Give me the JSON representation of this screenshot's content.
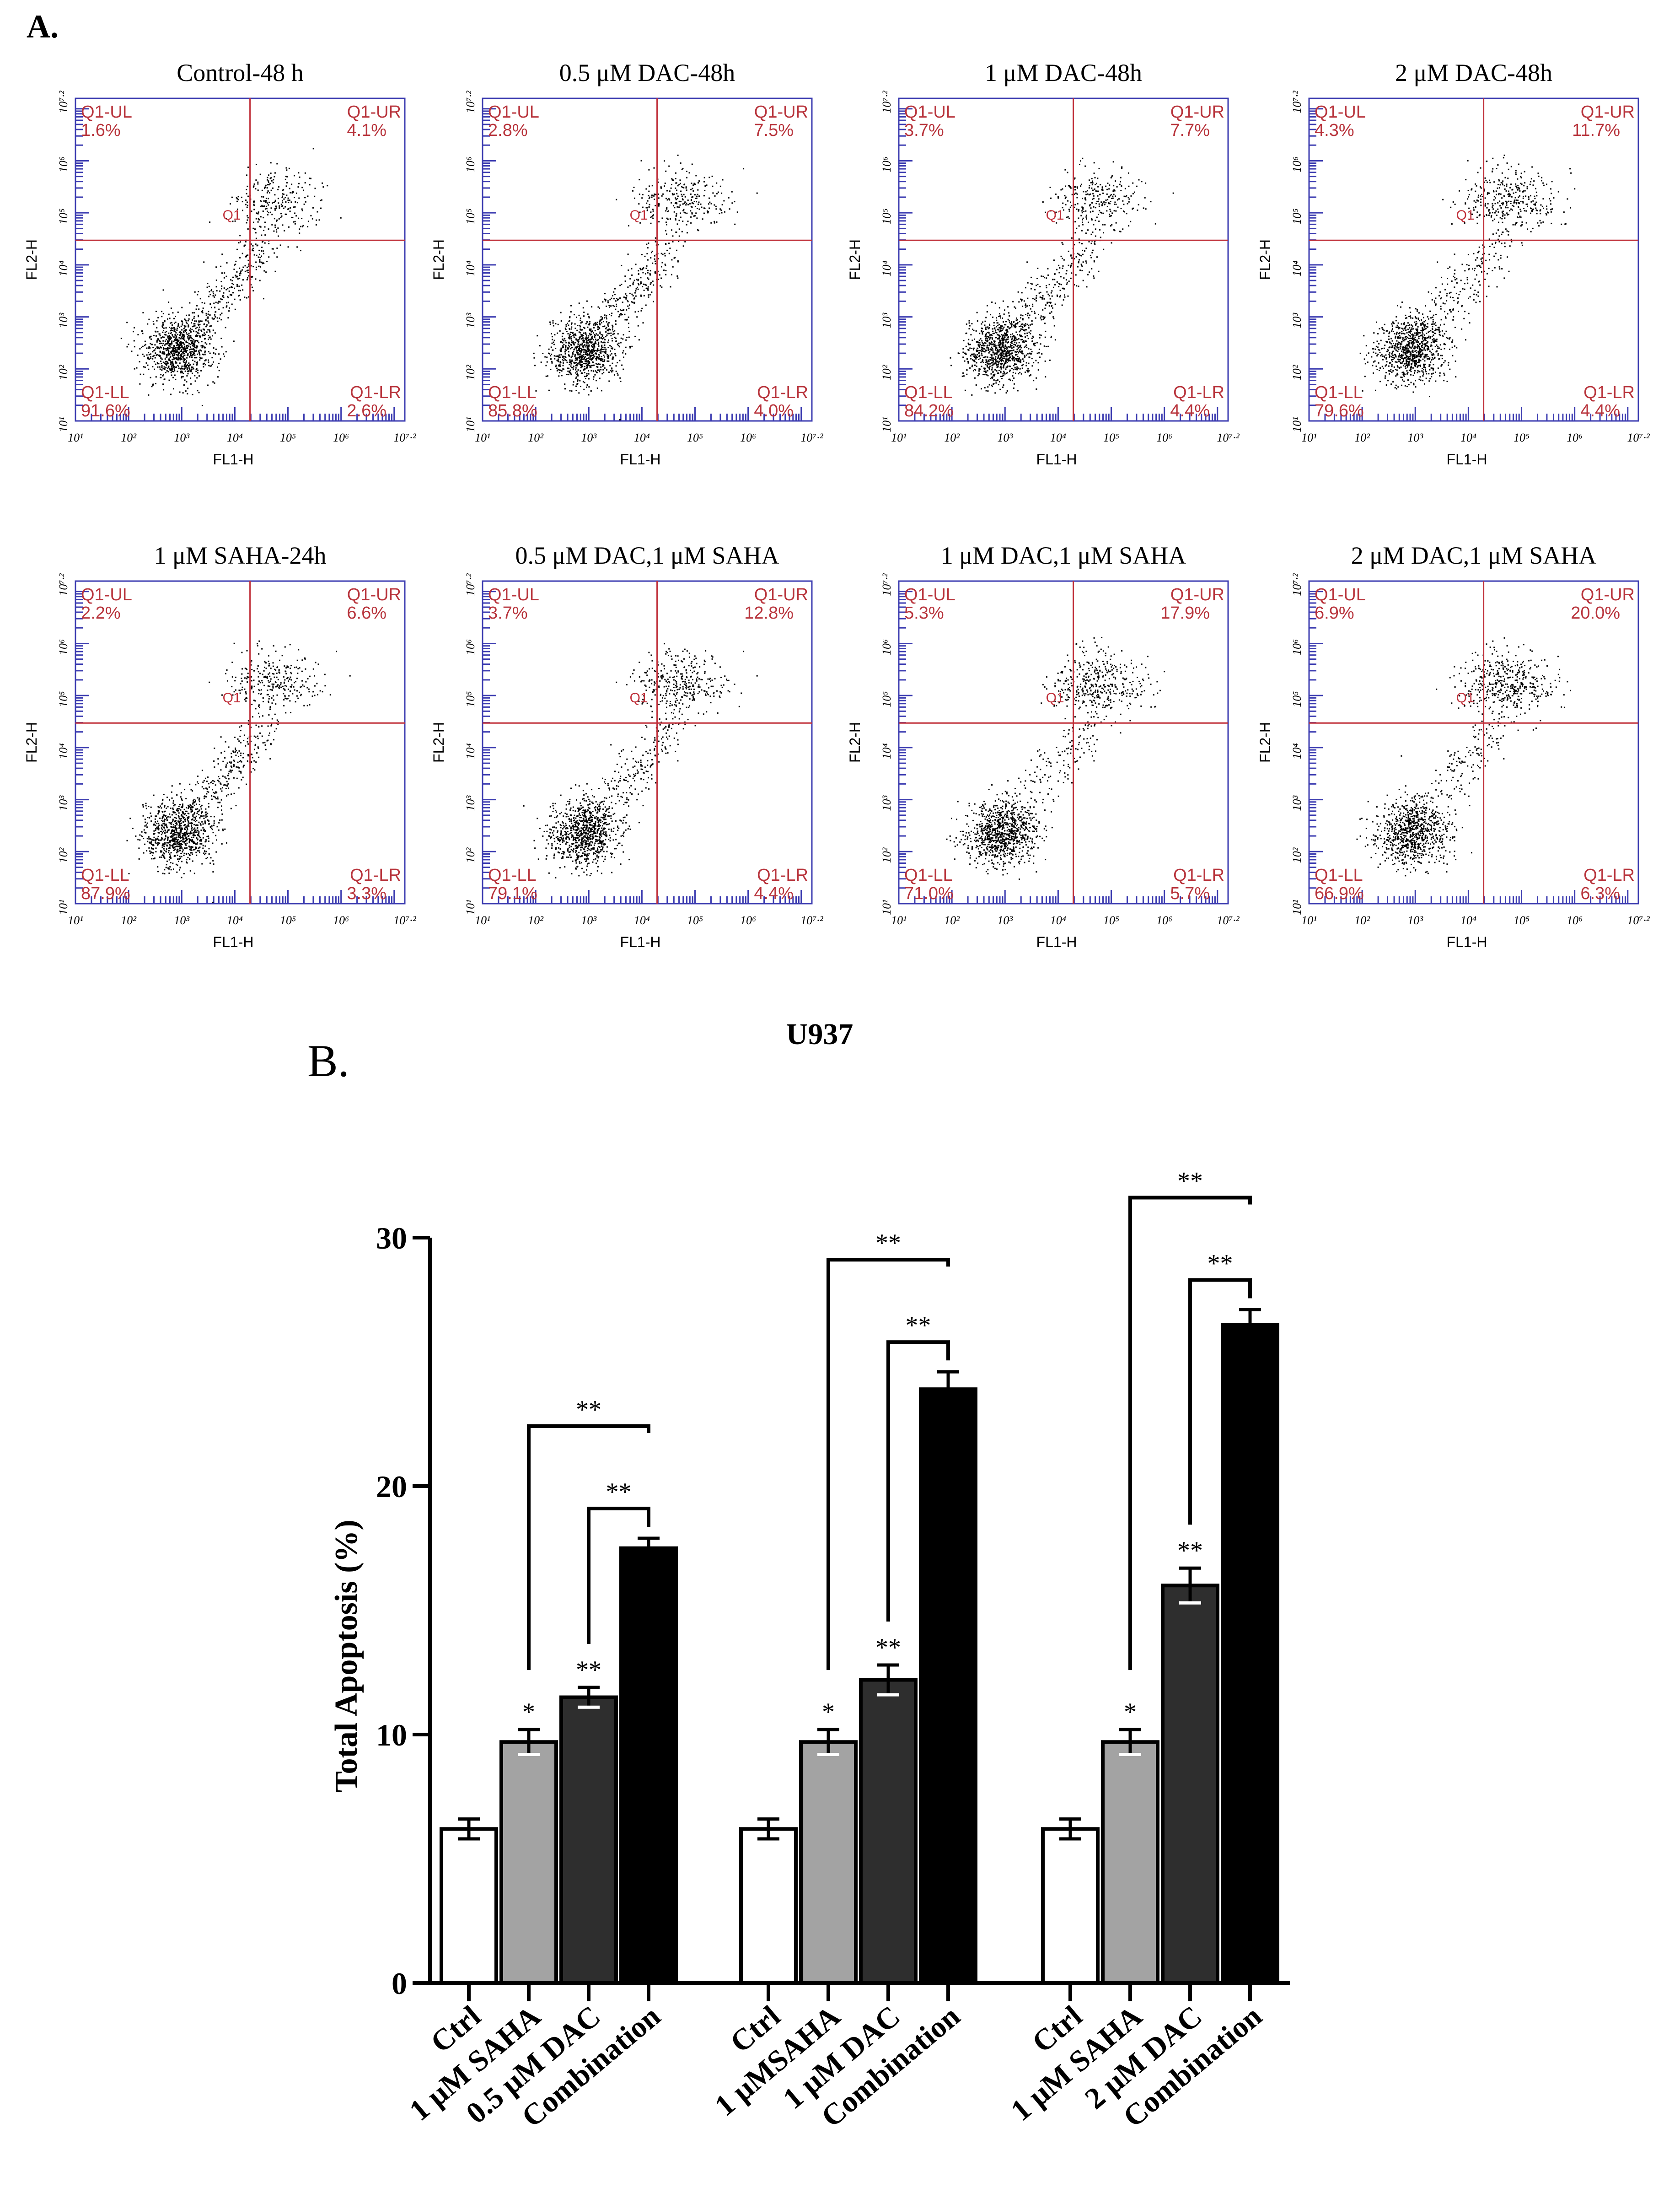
{
  "panel_a": {
    "label": "A.",
    "gate_label": "Q1",
    "x_axis_label": "FL1-H",
    "y_axis_label": "FL2-H",
    "log_ticks": [
      "10¹",
      "10²",
      "10³",
      "10⁴",
      "10⁵",
      "10⁶",
      "10⁷·²"
    ],
    "colors": {
      "frame": "#3b3bb0",
      "gate": "#c0303a",
      "quad_text": "#b8343c",
      "dots": "#000000"
    },
    "plots": [
      {
        "title": "Control-48 h",
        "ul": "1.6%",
        "ur": "4.1%",
        "ll": "91.6%",
        "lr": "2.6%"
      },
      {
        "title": "0.5 μM DAC-48h",
        "ul": "2.8%",
        "ur": "7.5%",
        "ll": "85.8%",
        "lr": "4.0%"
      },
      {
        "title": "1 μM DAC-48h",
        "ul": "3.7%",
        "ur": "7.7%",
        "ll": "84.2%",
        "lr": "4.4%"
      },
      {
        "title": "2 μM DAC-48h",
        "ul": "4.3%",
        "ur": "11.7%",
        "ll": "79.6%",
        "lr": "4.4%"
      },
      {
        "title": "1 μM SAHA-24h",
        "ul": "2.2%",
        "ur": "6.6%",
        "ll": "87.9%",
        "lr": "3.3%"
      },
      {
        "title": "0.5 μM DAC,1 μM SAHA",
        "ul": "3.7%",
        "ur": "12.8%",
        "ll": "79.1%",
        "lr": "4.4%"
      },
      {
        "title": "1 μM DAC,1 μM SAHA",
        "ul": "5.3%",
        "ur": "17.9%",
        "ll": "71.0%",
        "lr": "5.7%"
      },
      {
        "title": "2 μM DAC,1 μM SAHA",
        "ul": "6.9%",
        "ur": "20.0%",
        "ll": "66.9%",
        "lr": "6.3%"
      }
    ],
    "quadrant_names": {
      "ul": "Q1-UL",
      "ur": "Q1-UR",
      "ll": "Q1-LL",
      "lr": "Q1-LR"
    }
  },
  "chart_data": {
    "type": "bar",
    "panel_label": "B.",
    "title": "U937",
    "ylabel": "Total Apoptosis (%)",
    "xlabel": "",
    "ylim": [
      0,
      30
    ],
    "yticks": [
      "0",
      "10",
      "20",
      "30"
    ],
    "grid": false,
    "bar_colors": [
      "#ffffff",
      "#a3a3a3",
      "#2e2e2e",
      "#000000"
    ],
    "groups": [
      {
        "categories": [
          "Ctrl",
          "1 μM SAHA",
          "0.5 μM DAC",
          "Combination"
        ],
        "values": [
          6.2,
          9.7,
          11.5,
          17.5
        ],
        "errors": [
          0.4,
          0.5,
          0.4,
          0.4
        ],
        "marks": [
          "",
          "*",
          "**",
          ""
        ],
        "brackets": [
          {
            "from": 2,
            "to": 3,
            "label": "**"
          },
          {
            "from": 1,
            "to": 3,
            "label": "**"
          }
        ]
      },
      {
        "categories": [
          "Ctrl",
          "1 μMSAHA",
          "1 μM DAC",
          "Combination"
        ],
        "values": [
          6.2,
          9.7,
          12.2,
          23.9
        ],
        "errors": [
          0.4,
          0.5,
          0.6,
          0.7
        ],
        "marks": [
          "",
          "*",
          "**",
          ""
        ],
        "brackets": [
          {
            "from": 2,
            "to": 3,
            "label": "**"
          },
          {
            "from": 1,
            "to": 3,
            "label": "**"
          }
        ]
      },
      {
        "categories": [
          "Ctrl",
          "1 μM SAHA",
          "2 μM DAC",
          "Combination"
        ],
        "values": [
          6.2,
          9.7,
          16.0,
          26.5
        ],
        "errors": [
          0.4,
          0.5,
          0.7,
          0.6
        ],
        "marks": [
          "",
          "*",
          "**",
          ""
        ],
        "brackets": [
          {
            "from": 2,
            "to": 3,
            "label": "**"
          },
          {
            "from": 1,
            "to": 3,
            "label": "**"
          }
        ]
      }
    ]
  }
}
